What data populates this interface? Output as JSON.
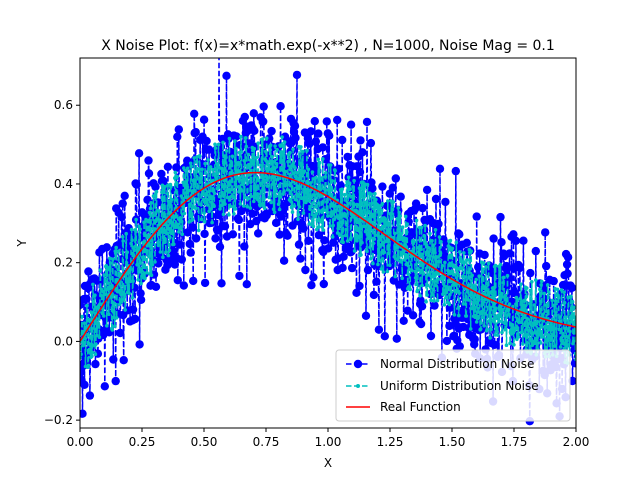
{
  "chart_data": {
    "type": "line",
    "title": "X Noise Plot: f(x)=x*math.exp(-x**2) , N=1000, Noise Mag = 0.1",
    "xlabel": "X",
    "ylabel": "Y",
    "xlim": [
      0.0,
      2.0
    ],
    "ylim": [
      -0.22,
      0.72
    ],
    "xticks": [
      0.0,
      0.25,
      0.5,
      0.75,
      1.0,
      1.25,
      1.5,
      1.75,
      2.0
    ],
    "xtick_labels": [
      "0.00",
      "0.25",
      "0.50",
      "0.75",
      "1.00",
      "1.25",
      "1.50",
      "1.75",
      "2.00"
    ],
    "yticks": [
      -0.2,
      0.0,
      0.2,
      0.4,
      0.6
    ],
    "ytick_labels": [
      "−0.2",
      "0.0",
      "0.2",
      "0.4",
      "0.6"
    ],
    "grid": false,
    "legend_position": "lower-right",
    "n_points": 1000,
    "noise_magnitude": 0.1,
    "function": "x*math.exp(-x**2)",
    "series": [
      {
        "name": "Normal Distribution Noise",
        "color": "#0000ff",
        "style": "dashed line with circle markers",
        "noise": "normal",
        "sigma": 0.1,
        "points": 1000
      },
      {
        "name": "Uniform Distribution Noise",
        "color": "#00bfbf",
        "style": "dashed line with small dot markers",
        "noise": "uniform",
        "range": [
          -0.1,
          0.1
        ],
        "points": 1000
      },
      {
        "name": "Real Function",
        "color": "#ff0000",
        "style": "solid line",
        "x": [
          0.0,
          0.1,
          0.2,
          0.3,
          0.4,
          0.5,
          0.6,
          0.7,
          0.707,
          0.8,
          0.9,
          1.0,
          1.1,
          1.2,
          1.3,
          1.4,
          1.5,
          1.6,
          1.7,
          1.8,
          1.9,
          2.0
        ],
        "y": [
          0.0,
          0.099,
          0.192,
          0.274,
          0.341,
          0.389,
          0.419,
          0.429,
          0.429,
          0.422,
          0.401,
          0.368,
          0.328,
          0.284,
          0.24,
          0.197,
          0.158,
          0.123,
          0.095,
          0.071,
          0.051,
          0.037
        ]
      }
    ]
  }
}
